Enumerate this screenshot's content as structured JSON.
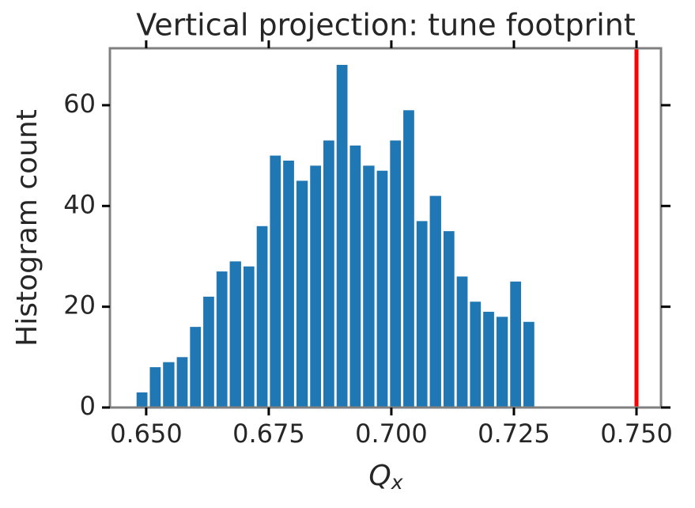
{
  "chart_data": {
    "type": "histogram",
    "title": "Vertical projection: tune footprint",
    "xlabel": "Q",
    "xlabel_sub": "x",
    "ylabel": "Histogram count",
    "bins": [
      0.6478,
      0.6505,
      0.6532,
      0.656,
      0.6587,
      0.6614,
      0.6641,
      0.6668,
      0.6696,
      0.6723,
      0.675,
      0.6777,
      0.6804,
      0.6832,
      0.6859,
      0.6886,
      0.6913,
      0.694,
      0.6968,
      0.6995,
      0.7022,
      0.7049,
      0.7076,
      0.7104,
      0.7131,
      0.7158,
      0.7185,
      0.7212,
      0.724,
      0.7267,
      0.7294
    ],
    "values": [
      3,
      8,
      9,
      10,
      16,
      22,
      27,
      29,
      28,
      36,
      50,
      49,
      45,
      48,
      53,
      68,
      52,
      48,
      47,
      53,
      59,
      37,
      42,
      35,
      26,
      21,
      19,
      18,
      25,
      17
    ],
    "color": "#1f77b4",
    "vline": 0.75,
    "vline_color": "#ff0000",
    "xlim": [
      0.6426,
      0.755
    ],
    "xticks": [
      {
        "value": 0.65,
        "label": "0.650"
      },
      {
        "value": 0.675,
        "label": "0.675"
      },
      {
        "value": 0.7,
        "label": "0.700"
      },
      {
        "value": 0.725,
        "label": "0.725"
      },
      {
        "value": 0.75,
        "label": "0.750"
      }
    ],
    "ylim": [
      0,
      71.3
    ],
    "yticks": [
      0,
      20,
      40,
      60
    ],
    "grid": false
  }
}
